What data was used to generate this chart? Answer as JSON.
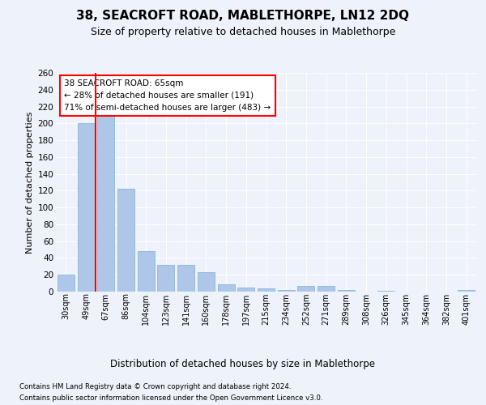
{
  "title": "38, SEACROFT ROAD, MABLETHORPE, LN12 2DQ",
  "subtitle": "Size of property relative to detached houses in Mablethorpe",
  "xlabel": "Distribution of detached houses by size in Mablethorpe",
  "ylabel": "Number of detached properties",
  "footnote1": "Contains HM Land Registry data © Crown copyright and database right 2024.",
  "footnote2": "Contains public sector information licensed under the Open Government Licence v3.0.",
  "categories": [
    "30sqm",
    "49sqm",
    "67sqm",
    "86sqm",
    "104sqm",
    "123sqm",
    "141sqm",
    "160sqm",
    "178sqm",
    "197sqm",
    "215sqm",
    "234sqm",
    "252sqm",
    "271sqm",
    "289sqm",
    "308sqm",
    "326sqm",
    "345sqm",
    "364sqm",
    "382sqm",
    "401sqm"
  ],
  "values": [
    20,
    200,
    213,
    122,
    48,
    32,
    32,
    23,
    9,
    5,
    4,
    2,
    7,
    7,
    2,
    0,
    1,
    0,
    0,
    0,
    2
  ],
  "bar_color": "#aec6e8",
  "bar_edge_color": "#7fafd4",
  "vline_x_index": 2,
  "vline_color": "red",
  "annotation_title": "38 SEACROFT ROAD: 65sqm",
  "annotation_line1": "← 28% of detached houses are smaller (191)",
  "annotation_line2": "71% of semi-detached houses are larger (483) →",
  "annotation_box_color": "white",
  "annotation_box_edgecolor": "red",
  "ylim": [
    0,
    260
  ],
  "yticks": [
    0,
    20,
    40,
    60,
    80,
    100,
    120,
    140,
    160,
    180,
    200,
    220,
    240,
    260
  ],
  "background_color": "#eef2fa",
  "plot_bg_color": "#eef2fa",
  "title_fontsize": 11,
  "subtitle_fontsize": 9
}
